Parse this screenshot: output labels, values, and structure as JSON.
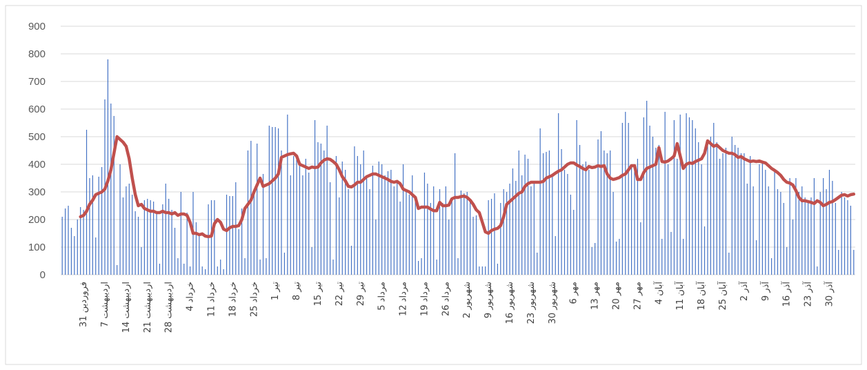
{
  "chart_data": {
    "type": "combo",
    "categories": [
      null,
      null,
      null,
      null,
      null,
      null,
      null,
      "31 فروردین",
      null,
      null,
      null,
      null,
      null,
      null,
      "7 اردیبهشت",
      null,
      null,
      null,
      null,
      null,
      null,
      "14 اردیبهشت",
      null,
      null,
      null,
      null,
      null,
      null,
      "21 اردیبهشت",
      null,
      null,
      null,
      null,
      null,
      null,
      "28 اردیبهشت",
      null,
      null,
      null,
      null,
      null,
      null,
      "4 خرداد",
      null,
      null,
      null,
      null,
      null,
      null,
      "11 خرداد",
      null,
      null,
      null,
      null,
      null,
      null,
      "18 خرداد",
      null,
      null,
      null,
      null,
      null,
      null,
      "25 خرداد",
      null,
      null,
      null,
      null,
      null,
      null,
      "1 تیر",
      null,
      null,
      null,
      null,
      null,
      null,
      "8 تیر",
      null,
      null,
      null,
      null,
      null,
      null,
      "15 تیر",
      null,
      null,
      null,
      null,
      null,
      null,
      "22 تیر",
      null,
      null,
      null,
      null,
      null,
      null,
      "29 تیر",
      null,
      null,
      null,
      null,
      null,
      null,
      "5 مرداد",
      null,
      null,
      null,
      null,
      null,
      null,
      "12 مرداد",
      null,
      null,
      null,
      null,
      null,
      null,
      "19 مرداد",
      null,
      null,
      null,
      null,
      null,
      null,
      "26 مرداد",
      null,
      null,
      null,
      null,
      null,
      null,
      "2 شهریور",
      null,
      null,
      null,
      null,
      null,
      null,
      "9 شهریور",
      null,
      null,
      null,
      null,
      null,
      null,
      "16 شهریور",
      null,
      null,
      null,
      null,
      null,
      null,
      "23 شهریور",
      null,
      null,
      null,
      null,
      null,
      null,
      "30 شهریور",
      null,
      null,
      null,
      null,
      null,
      null,
      "6 مهر",
      null,
      null,
      null,
      null,
      null,
      null,
      "13 مهر",
      null,
      null,
      null,
      null,
      null,
      null,
      "20 مهر",
      null,
      null,
      null,
      null,
      null,
      null,
      "27 مهر",
      null,
      null,
      null,
      null,
      null,
      null,
      "4 آبان",
      null,
      null,
      null,
      null,
      null,
      null,
      "11 آبان",
      null,
      null,
      null,
      null,
      null,
      null,
      "18 آبان",
      null,
      null,
      null,
      null,
      null,
      null,
      "25 آبان",
      null,
      null,
      null,
      null,
      null,
      null,
      "2 آذر",
      null,
      null,
      null,
      null,
      null,
      null,
      "9 آذر",
      null,
      null,
      null,
      null,
      null,
      null,
      "16 آذر",
      null,
      null,
      null,
      null,
      null,
      null,
      "23 آذر",
      null,
      null,
      null,
      null,
      null,
      null,
      "30 آذر",
      null,
      null,
      null,
      null,
      null,
      null,
      null,
      null
    ],
    "series": [
      {
        "type": "bar",
        "color": "#4472c4",
        "values": [
          210,
          240,
          250,
          170,
          140,
          200,
          245,
          235,
          525,
          350,
          360,
          135,
          355,
          390,
          635,
          780,
          620,
          575,
          35,
          400,
          280,
          320,
          330,
          290,
          230,
          210,
          100,
          270,
          275,
          270,
          265,
          225,
          40,
          255,
          330,
          275,
          235,
          170,
          60,
          300,
          40,
          225,
          30,
          300,
          190,
          150,
          30,
          20,
          255,
          270,
          270,
          30,
          55,
          20,
          290,
          285,
          285,
          335,
          165,
          240,
          60,
          450,
          485,
          310,
          475,
          55,
          365,
          60,
          540,
          535,
          535,
          530,
          450,
          80,
          580,
          360,
          430,
          420,
          400,
          360,
          420,
          370,
          100,
          560,
          480,
          475,
          450,
          540,
          335,
          55,
          430,
          280,
          410,
          380,
          310,
          105,
          465,
          430,
          400,
          450,
          350,
          310,
          395,
          200,
          410,
          400,
          360,
          375,
          380,
          320,
          340,
          265,
          400,
          310,
          290,
          360,
          270,
          50,
          60,
          370,
          330,
          260,
          320,
          55,
          310,
          260,
          320,
          200,
          280,
          440,
          60,
          305,
          295,
          300,
          270,
          210,
          215,
          30,
          30,
          30,
          270,
          275,
          295,
          40,
          260,
          310,
          300,
          330,
          385,
          340,
          450,
          360,
          435,
          420,
          320,
          330,
          80,
          530,
          440,
          445,
          450,
          360,
          140,
          585,
          455,
          380,
          365,
          290,
          235,
          560,
          470,
          400,
          410,
          380,
          100,
          115,
          490,
          520,
          450,
          440,
          450,
          300,
          120,
          130,
          550,
          590,
          550,
          390,
          400,
          420,
          190,
          570,
          630,
          540,
          500,
          460,
          470,
          130,
          590,
          400,
          155,
          560,
          420,
          580,
          130,
          585,
          570,
          560,
          530,
          480,
          400,
          175,
          490,
          500,
          550,
          480,
          420,
          440,
          460,
          80,
          500,
          470,
          460,
          440,
          440,
          330,
          430,
          320,
          125,
          400,
          410,
          380,
          320,
          60,
          380,
          310,
          300,
          260,
          100,
          350,
          200,
          350,
          300,
          320,
          280,
          260,
          280,
          350,
          30,
          300,
          350,
          310,
          380,
          340,
          260,
          90,
          300,
          280,
          270,
          250,
          90
        ]
      },
      {
        "type": "line",
        "color": "#c0504d",
        "values": [
          null,
          null,
          null,
          null,
          null,
          null,
          210,
          215,
          230,
          255,
          270,
          290,
          295,
          300,
          310,
          340,
          380,
          440,
          500,
          490,
          480,
          465,
          420,
          350,
          290,
          250,
          255,
          240,
          235,
          230,
          230,
          225,
          225,
          230,
          225,
          225,
          220,
          225,
          215,
          220,
          220,
          215,
          190,
          150,
          150,
          145,
          148,
          140,
          138,
          140,
          185,
          200,
          190,
          165,
          160,
          170,
          175,
          175,
          178,
          200,
          240,
          255,
          270,
          300,
          325,
          350,
          320,
          325,
          330,
          340,
          350,
          365,
          425,
          430,
          435,
          438,
          440,
          430,
          400,
          395,
          390,
          385,
          390,
          388,
          390,
          405,
          415,
          420,
          418,
          410,
          400,
          380,
          355,
          340,
          320,
          318,
          325,
          335,
          335,
          345,
          355,
          360,
          365,
          365,
          360,
          355,
          350,
          345,
          338,
          335,
          338,
          330,
          310,
          305,
          300,
          290,
          280,
          240,
          245,
          245,
          245,
          238,
          232,
          232,
          262,
          250,
          250,
          252,
          275,
          280,
          280,
          283,
          285,
          280,
          270,
          255,
          235,
          225,
          190,
          155,
          150,
          160,
          165,
          168,
          178,
          210,
          255,
          265,
          275,
          285,
          295,
          300,
          320,
          330,
          335,
          335,
          335,
          335,
          338,
          350,
          355,
          360,
          368,
          375,
          380,
          390,
          400,
          405,
          405,
          398,
          392,
          385,
          380,
          392,
          388,
          390,
          395,
          392,
          395,
          365,
          350,
          345,
          348,
          352,
          360,
          365,
          380,
          395,
          395,
          345,
          345,
          370,
          385,
          390,
          395,
          400,
          460,
          410,
          408,
          412,
          420,
          430,
          475,
          430,
          385,
          400,
          405,
          403,
          410,
          415,
          420,
          440,
          485,
          475,
          465,
          470,
          460,
          450,
          445,
          440,
          440,
          435,
          425,
          428,
          420,
          415,
          410,
          412,
          410,
          412,
          408,
          405,
          395,
          385,
          378,
          370,
          360,
          345,
          335,
          332,
          325,
          305,
          280,
          268,
          268,
          265,
          262,
          258,
          268,
          262,
          250,
          255,
          262,
          265,
          272,
          280,
          288,
          290,
          285,
          290,
          292
        ]
      }
    ],
    "ylim": [
      0,
      900
    ],
    "yticks": [
      0,
      100,
      200,
      300,
      400,
      500,
      600,
      700,
      800,
      900
    ],
    "grid": true
  }
}
